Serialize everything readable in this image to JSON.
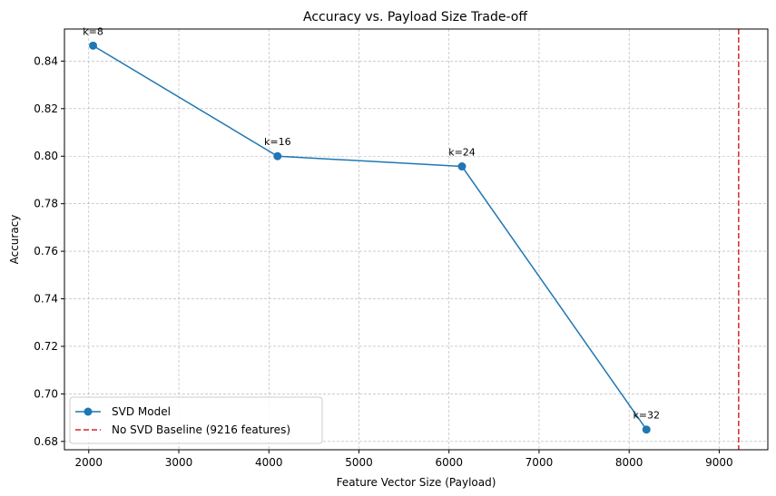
{
  "chart_data": {
    "type": "line",
    "title": "Accuracy vs. Payload Size Trade-off",
    "xlabel": "Feature Vector Size (Payload)",
    "ylabel": "Accuracy",
    "xlim": [
      1730,
      9540
    ],
    "ylim": [
      0.6765,
      0.8535
    ],
    "x_ticks": [
      2000,
      3000,
      4000,
      5000,
      6000,
      7000,
      8000,
      9000
    ],
    "y_ticks": [
      0.68,
      0.7,
      0.72,
      0.74,
      0.76,
      0.78,
      0.8,
      0.82,
      0.84
    ],
    "grid": true,
    "legend_position": "lower-left",
    "series": [
      {
        "name": "SVD Model",
        "color": "#1f77b4",
        "x": [
          2048,
          4096,
          6144,
          8192
        ],
        "y": [
          0.8465,
          0.8,
          0.7957,
          0.685
        ],
        "labels": [
          "k=8",
          "k=16",
          "k=24",
          "k=32"
        ]
      }
    ],
    "reference_lines": [
      {
        "name": "No SVD Baseline (9216 features)",
        "x": 9216,
        "color": "#d62728",
        "style": "dashed"
      }
    ]
  }
}
